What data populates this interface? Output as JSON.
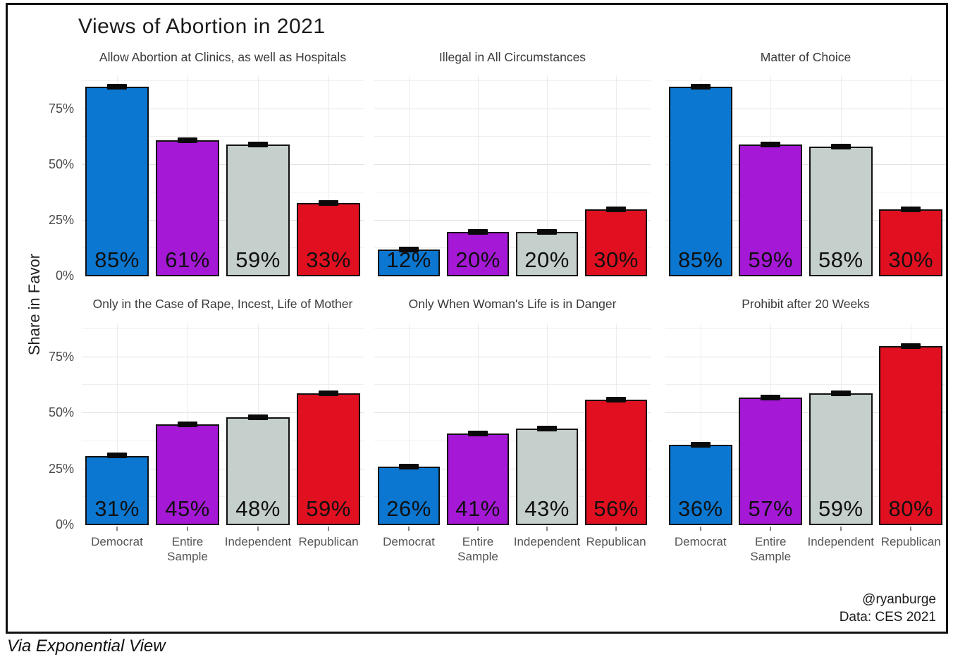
{
  "title": "Views of Abortion in 2021",
  "y_axis_title": "Share in Favor",
  "caption": {
    "line1": "@ryanburge",
    "line2": "Data: CES 2021"
  },
  "footer_note": "Via Exponential View",
  "colors": {
    "democrat_blue": "#0b77d1",
    "entire_sample_purple": "#a519d6",
    "independent_gray": "#c5cfcc",
    "republican_red": "#e01020",
    "bar_outline": "#111111",
    "gridline_major": "#e2e2e2",
    "gridline_minor": "#efefef"
  },
  "chart_data": {
    "type": "bar",
    "layout": "2x3 facet grid",
    "categories": [
      "Democrat",
      "Entire\nSample",
      "Independent",
      "Republican"
    ],
    "category_colors": [
      "#0b77d1",
      "#a519d6",
      "#c5cfcc",
      "#e01020"
    ],
    "y_tick_values": [
      0,
      25,
      50,
      75
    ],
    "y_tick_labels": [
      "0%",
      "25%",
      "50%",
      "75%"
    ],
    "ylim": [
      0,
      90
    ],
    "ylabel": "Share in Favor",
    "grid": "on",
    "error_bars_visible": true,
    "value_label_format": "percent, printed inside bar near baseline",
    "facets": [
      {
        "title": "Allow Abortion at Clinics, as well as Hospitals",
        "values": [
          85,
          61,
          59,
          33
        ],
        "labels": [
          "85%",
          "61%",
          "59%",
          "33%"
        ]
      },
      {
        "title": "Illegal in All Circumstances",
        "values": [
          12,
          20,
          20,
          30
        ],
        "labels": [
          "12%",
          "20%",
          "20%",
          "30%"
        ]
      },
      {
        "title": "Matter of Choice",
        "values": [
          85,
          59,
          58,
          30
        ],
        "labels": [
          "85%",
          "59%",
          "58%",
          "30%"
        ]
      },
      {
        "title": "Only in the Case of Rape, Incest, Life of Mother",
        "values": [
          31,
          45,
          48,
          59
        ],
        "labels": [
          "31%",
          "45%",
          "48%",
          "59%"
        ]
      },
      {
        "title": "Only When Woman's Life is in Danger",
        "values": [
          26,
          41,
          43,
          56
        ],
        "labels": [
          "26%",
          "41%",
          "43%",
          "56%"
        ]
      },
      {
        "title": "Prohibit after 20 Weeks",
        "values": [
          36,
          57,
          59,
          80
        ],
        "labels": [
          "36%",
          "57%",
          "59%",
          "80%"
        ]
      }
    ]
  }
}
